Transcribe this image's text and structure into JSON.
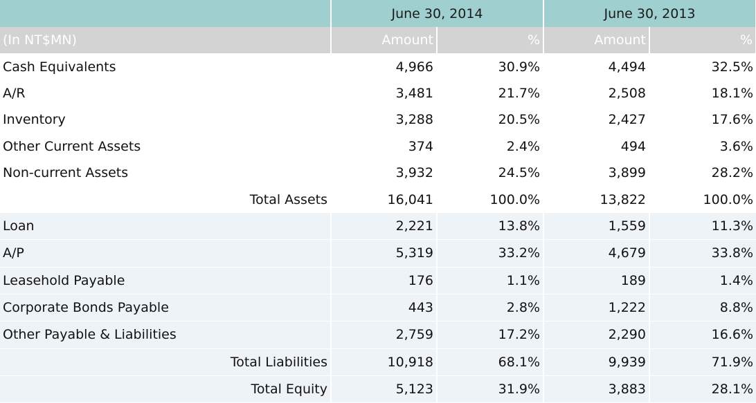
{
  "header": {
    "period1": "June 30, 2014",
    "period2": "June 30, 2013",
    "unit": "(In NT$MN)",
    "amount": "Amount",
    "percent": "%"
  },
  "assets": [
    {
      "label": "Cash Equivalents",
      "a1": "4,966",
      "p1": "30.9%",
      "a2": "4,494",
      "p2": "32.5%"
    },
    {
      "label": "A/R",
      "a1": "3,481",
      "p1": "21.7%",
      "a2": "2,508",
      "p2": "18.1%"
    },
    {
      "label": "Inventory",
      "a1": "3,288",
      "p1": "20.5%",
      "a2": "2,427",
      "p2": "17.6%"
    },
    {
      "label": "Other Current Assets",
      "a1": "374",
      "p1": "2.4%",
      "a2": "494",
      "p2": "3.6%"
    },
    {
      "label": "Non-current Assets",
      "a1": "3,932",
      "p1": "24.5%",
      "a2": "3,899",
      "p2": "28.2%"
    },
    {
      "label": "Total Assets",
      "a1": "16,041",
      "p1": "100.0%",
      "a2": "13,822",
      "p2": "100.0%"
    }
  ],
  "liabilities": [
    {
      "label": "Loan",
      "a1": "2,221",
      "p1": "13.8%",
      "a2": "1,559",
      "p2": "11.3%"
    },
    {
      "label": "A/P",
      "a1": "5,319",
      "p1": "33.2%",
      "a2": "4,679",
      "p2": "33.8%"
    },
    {
      "label": "Leasehold Payable",
      "a1": "176",
      "p1": "1.1%",
      "a2": "189",
      "p2": "1.4%"
    },
    {
      "label": "Corporate Bonds Payable",
      "a1": "443",
      "p1": "2.8%",
      "a2": "1,222",
      "p2": "8.8%"
    },
    {
      "label": "Other Payable & Liabilities",
      "a1": "2,759",
      "p1": "17.2%",
      "a2": "2,290",
      "p2": "16.6%"
    },
    {
      "label": "Total Liabilities",
      "a1": "10,918",
      "p1": "68.1%",
      "a2": "9,939",
      "p2": "71.9%"
    },
    {
      "label": "Total Equity",
      "a1": "5,123",
      "p1": "31.9%",
      "a2": "3,883",
      "p2": "28.1%"
    }
  ]
}
